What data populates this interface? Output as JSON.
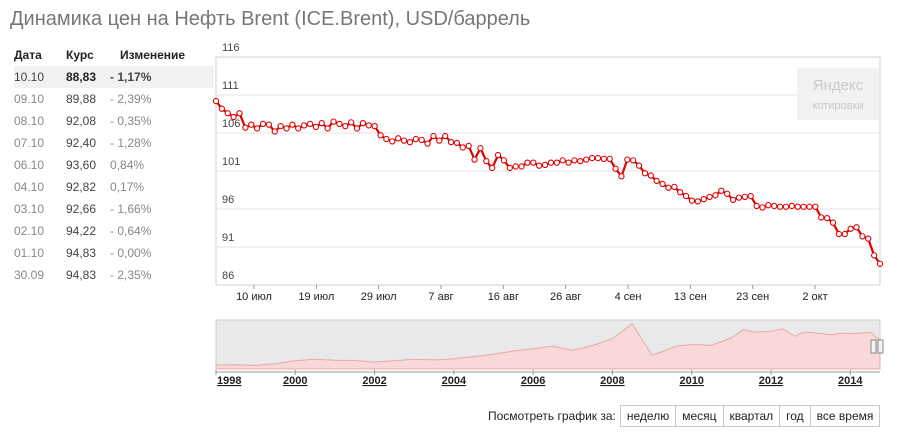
{
  "title": "Динамика цен на Нефть Brent (ICE.Brent), USD/баррель",
  "table": {
    "headers": {
      "date": "Дата",
      "rate": "Курс",
      "change": "Изменение"
    },
    "rows": [
      {
        "date": "10.10",
        "rate": "88,83",
        "change": "- 1,17%"
      },
      {
        "date": "09.10",
        "rate": "89,88",
        "change": "- 2,39%"
      },
      {
        "date": "08.10",
        "rate": "92,08",
        "change": "- 0,35%"
      },
      {
        "date": "07.10",
        "rate": "92,40",
        "change": "- 1,28%"
      },
      {
        "date": "06.10",
        "rate": "93,60",
        "change": "0,84%"
      },
      {
        "date": "04.10",
        "rate": "92,82",
        "change": "0,17%"
      },
      {
        "date": "03.10",
        "rate": "92,66",
        "change": "- 1,66%"
      },
      {
        "date": "02.10",
        "rate": "94,22",
        "change": "- 0,64%"
      },
      {
        "date": "01.10",
        "rate": "94,83",
        "change": "- 0,00%"
      },
      {
        "date": "30.09",
        "rate": "94,83",
        "change": "- 2,35%"
      }
    ]
  },
  "logo": {
    "brand": "Яндекс",
    "sub": "котировки"
  },
  "filters": {
    "label": "Посмотреть график за:",
    "buttons": [
      "неделю",
      "месяц",
      "квартал",
      "год",
      "все время"
    ]
  },
  "colors": {
    "line": "#e00000",
    "marker_fill": "#ffffff",
    "grid": "#e6e6e6",
    "nav_fill": "#f8d8d8",
    "nav_line": "#e8a8a8"
  },
  "chart_data": [
    {
      "type": "line",
      "title": "",
      "xlabel": "",
      "ylabel": "",
      "ylim": [
        86,
        116
      ],
      "yticks": [
        116,
        111,
        106,
        101,
        96,
        91,
        86
      ],
      "xtick_labels": [
        "10 июл",
        "19 июл",
        "29 июл",
        "7 авг",
        "16 авг",
        "26 авг",
        "4 сен",
        "13 сен",
        "23 сен",
        "2 окт"
      ],
      "grid": true,
      "series": [
        {
          "values": [
            110.2,
            109.2,
            108.6,
            108.1,
            108.6,
            106.7,
            107.1,
            106.6,
            107.2,
            107.1,
            106.2,
            106.9,
            106.6,
            107.1,
            106.6,
            107.0,
            107.2,
            106.8,
            107.3,
            106.6,
            107.5,
            107.2,
            106.9,
            107.4,
            106.6,
            107.3,
            107.0,
            106.9,
            105.7,
            105.2,
            104.9,
            105.3,
            105.0,
            104.8,
            105.2,
            105.1,
            104.6,
            105.6,
            105.0,
            105.6,
            104.8,
            104.7,
            104.1,
            104.3,
            102.5,
            104.0,
            102.3,
            101.4,
            103.1,
            102.4,
            101.4,
            101.6,
            101.6,
            102.1,
            102.1,
            101.7,
            101.8,
            102.1,
            102.1,
            102.4,
            102.1,
            102.4,
            102.3,
            102.5,
            102.7,
            102.7,
            102.6,
            102.6,
            101.3,
            100.3,
            102.5,
            102.4,
            101.7,
            100.7,
            100.4,
            99.7,
            99.3,
            98.8,
            98.9,
            98.2,
            97.7,
            97.1,
            97.0,
            97.3,
            97.6,
            97.8,
            98.4,
            98.0,
            97.2,
            97.5,
            97.6,
            97.7,
            96.4,
            96.2,
            96.5,
            96.4,
            96.3,
            96.3,
            96.4,
            96.3,
            96.3,
            96.3,
            96.3,
            94.9,
            94.8,
            94.2,
            92.7,
            92.7,
            93.4,
            93.6,
            92.4,
            92.1,
            89.9,
            88.8
          ]
        }
      ]
    },
    {
      "type": "area",
      "xtick_labels": [
        "1998",
        "2000",
        "2002",
        "2004",
        "2006",
        "2008",
        "2010",
        "2012",
        "2014"
      ],
      "points": [
        [
          1998.0,
          12
        ],
        [
          1998.5,
          13
        ],
        [
          1999.0,
          11
        ],
        [
          1999.5,
          16
        ],
        [
          2000.0,
          25
        ],
        [
          2000.5,
          30
        ],
        [
          2001.0,
          27
        ],
        [
          2001.5,
          26
        ],
        [
          2002.0,
          21
        ],
        [
          2002.5,
          25
        ],
        [
          2003.0,
          30
        ],
        [
          2003.5,
          28
        ],
        [
          2004.0,
          31
        ],
        [
          2004.5,
          38
        ],
        [
          2005.0,
          45
        ],
        [
          2005.5,
          55
        ],
        [
          2006.0,
          62
        ],
        [
          2006.5,
          70
        ],
        [
          2007.0,
          57
        ],
        [
          2007.5,
          72
        ],
        [
          2008.0,
          93
        ],
        [
          2008.3,
          120
        ],
        [
          2008.5,
          138
        ],
        [
          2008.75,
          90
        ],
        [
          2009.0,
          42
        ],
        [
          2009.3,
          55
        ],
        [
          2009.6,
          70
        ],
        [
          2010.0,
          75
        ],
        [
          2010.5,
          73
        ],
        [
          2011.0,
          95
        ],
        [
          2011.3,
          120
        ],
        [
          2011.6,
          113
        ],
        [
          2012.0,
          115
        ],
        [
          2012.3,
          123
        ],
        [
          2012.6,
          100
        ],
        [
          2012.8,
          112
        ],
        [
          2013.0,
          112
        ],
        [
          2013.5,
          105
        ],
        [
          2013.8,
          110
        ],
        [
          2014.0,
          108
        ],
        [
          2014.5,
          112
        ],
        [
          2014.75,
          89
        ]
      ]
    }
  ]
}
